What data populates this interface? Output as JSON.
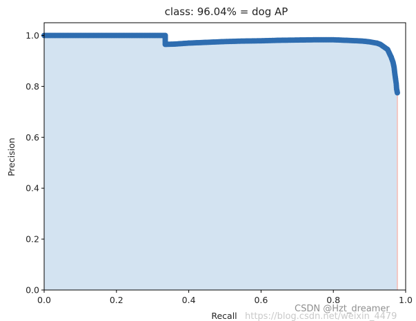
{
  "chart_data": {
    "type": "area",
    "title": "class: 96.04% = dog AP",
    "xlabel": "Recall",
    "ylabel": "Precision",
    "xlim": [
      0.0,
      1.0
    ],
    "ylim": [
      0.0,
      1.05
    ],
    "xticks": [
      "0.0",
      "0.2",
      "0.4",
      "0.6",
      "0.8",
      "1.0"
    ],
    "yticks": [
      "0.0",
      "0.2",
      "0.4",
      "0.6",
      "0.8",
      "1.0"
    ],
    "grid": false,
    "colors": {
      "marker": "#2e6db0",
      "fill": "#d3e3f1",
      "edge": "#f2c7c4"
    },
    "series": [
      {
        "x": [
          0.0,
          0.05,
          0.1,
          0.15,
          0.2,
          0.25,
          0.3,
          0.335,
          0.335,
          0.36,
          0.4,
          0.45,
          0.5,
          0.55,
          0.6,
          0.65,
          0.7,
          0.75,
          0.8,
          0.85,
          0.88,
          0.9,
          0.92,
          0.93,
          0.94,
          0.95,
          0.955,
          0.96,
          0.965,
          0.968,
          0.97,
          0.972,
          0.974,
          0.975,
          0.977
        ],
        "y": [
          1.0,
          1.0,
          1.0,
          1.0,
          1.0,
          1.0,
          1.0,
          1.0,
          0.965,
          0.966,
          0.97,
          0.973,
          0.976,
          0.978,
          0.979,
          0.981,
          0.982,
          0.983,
          0.983,
          0.98,
          0.978,
          0.975,
          0.97,
          0.965,
          0.955,
          0.945,
          0.93,
          0.915,
          0.895,
          0.875,
          0.85,
          0.83,
          0.81,
          0.79,
          0.775
        ]
      }
    ]
  },
  "watermark": {
    "text": "CSDN @Hzt_dreamer",
    "url_text": "https://blog.csdn.net/weixin_4479"
  }
}
